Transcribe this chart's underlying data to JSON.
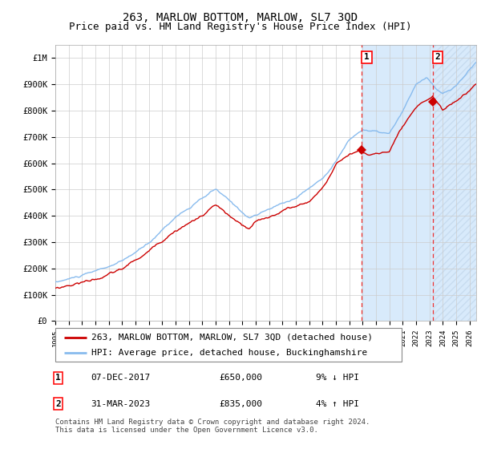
{
  "title": "263, MARLOW BOTTOM, MARLOW, SL7 3QD",
  "subtitle": "Price paid vs. HM Land Registry's House Price Index (HPI)",
  "xlim_start": 1995.0,
  "xlim_end": 2026.5,
  "ylim": [
    0,
    1050000
  ],
  "yticks": [
    0,
    100000,
    200000,
    300000,
    400000,
    500000,
    600000,
    700000,
    800000,
    900000,
    1000000
  ],
  "ytick_labels": [
    "£0",
    "£100K",
    "£200K",
    "£300K",
    "£400K",
    "£500K",
    "£600K",
    "£700K",
    "£800K",
    "£900K",
    "£1M"
  ],
  "xticks": [
    1995,
    1996,
    1997,
    1998,
    1999,
    2000,
    2001,
    2002,
    2003,
    2004,
    2005,
    2006,
    2007,
    2008,
    2009,
    2010,
    2011,
    2012,
    2013,
    2014,
    2015,
    2016,
    2017,
    2018,
    2019,
    2020,
    2021,
    2022,
    2023,
    2024,
    2025,
    2026
  ],
  "hpi_color": "#88BBEE",
  "price_color": "#CC0000",
  "sale1_date": 2017.92,
  "sale1_price": 650000,
  "sale2_date": 2023.25,
  "sale2_price": 835000,
  "shade_color": "#D8EAFB",
  "hatch_color": "#C8DCF0",
  "legend_line1": "263, MARLOW BOTTOM, MARLOW, SL7 3QD (detached house)",
  "legend_line2": "HPI: Average price, detached house, Buckinghamshire",
  "footer": "Contains HM Land Registry data © Crown copyright and database right 2024.\nThis data is licensed under the Open Government Licence v3.0.",
  "title_fontsize": 10,
  "subtitle_fontsize": 9,
  "tick_fontsize": 7.5,
  "legend_fontsize": 8,
  "footer_fontsize": 6.5
}
